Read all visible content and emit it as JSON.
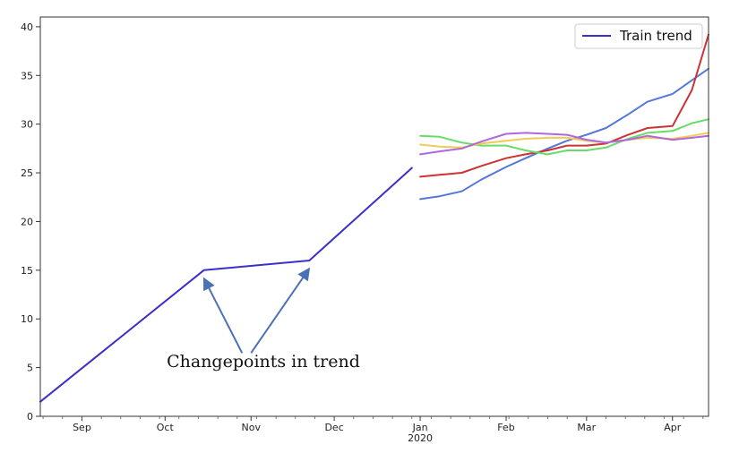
{
  "chart_data": {
    "type": "line",
    "title": "",
    "xlabel": "",
    "ylabel": "",
    "x_axis": {
      "type": "date",
      "range": [
        "2019-08-17",
        "2020-04-14"
      ],
      "ticks": [
        {
          "date": "2019-09-01",
          "label": "Sep"
        },
        {
          "date": "2019-10-01",
          "label": "Oct"
        },
        {
          "date": "2019-11-01",
          "label": "Nov"
        },
        {
          "date": "2019-12-01",
          "label": "Dec"
        },
        {
          "date": "2020-01-01",
          "label": "Jan",
          "sublabel": "2020"
        },
        {
          "date": "2020-02-01",
          "label": "Feb"
        },
        {
          "date": "2020-03-01",
          "label": "Mar"
        },
        {
          "date": "2020-04-01",
          "label": "Apr"
        }
      ]
    },
    "y_axis": {
      "range": [
        0,
        41
      ],
      "ticks": [
        0,
        5,
        10,
        15,
        20,
        25,
        30,
        35,
        40
      ]
    },
    "grid": false,
    "legend": {
      "placement": "top-right",
      "entries": [
        "Train trend"
      ]
    },
    "series": [
      {
        "name": "Train trend",
        "color": "#3a30c8",
        "in_legend": true,
        "points": [
          [
            "2019-08-17",
            1.5
          ],
          [
            "2019-10-15",
            15.0
          ],
          [
            "2019-11-22",
            16.0
          ],
          [
            "2019-12-29",
            25.5
          ]
        ]
      },
      {
        "color": "#5577d8",
        "in_legend": false,
        "points": [
          [
            "2020-01-01",
            22.3
          ],
          [
            "2020-01-08",
            22.6
          ],
          [
            "2020-01-16",
            23.1
          ],
          [
            "2020-01-23",
            24.3
          ],
          [
            "2020-02-01",
            25.6
          ],
          [
            "2020-02-08",
            26.5
          ],
          [
            "2020-02-16",
            27.5
          ],
          [
            "2020-02-23",
            28.3
          ],
          [
            "2020-03-01",
            28.9
          ],
          [
            "2020-03-08",
            29.6
          ],
          [
            "2020-03-16",
            31.0
          ],
          [
            "2020-03-23",
            32.3
          ],
          [
            "2020-04-01",
            33.1
          ],
          [
            "2020-04-08",
            34.5
          ],
          [
            "2020-04-14",
            35.7
          ]
        ]
      },
      {
        "color": "#cc3333",
        "in_legend": false,
        "points": [
          [
            "2020-01-01",
            24.6
          ],
          [
            "2020-01-08",
            24.8
          ],
          [
            "2020-01-16",
            25.0
          ],
          [
            "2020-01-23",
            25.7
          ],
          [
            "2020-02-01",
            26.5
          ],
          [
            "2020-02-08",
            26.9
          ],
          [
            "2020-02-16",
            27.3
          ],
          [
            "2020-02-23",
            27.8
          ],
          [
            "2020-03-01",
            27.8
          ],
          [
            "2020-03-08",
            28.0
          ],
          [
            "2020-03-16",
            28.9
          ],
          [
            "2020-03-23",
            29.6
          ],
          [
            "2020-04-01",
            29.8
          ],
          [
            "2020-04-08",
            33.5
          ],
          [
            "2020-04-14",
            39.2
          ]
        ]
      },
      {
        "color": "#66dd66",
        "in_legend": false,
        "points": [
          [
            "2020-01-01",
            28.8
          ],
          [
            "2020-01-08",
            28.7
          ],
          [
            "2020-01-16",
            28.1
          ],
          [
            "2020-01-23",
            27.8
          ],
          [
            "2020-02-01",
            27.8
          ],
          [
            "2020-02-08",
            27.3
          ],
          [
            "2020-02-16",
            26.9
          ],
          [
            "2020-02-23",
            27.3
          ],
          [
            "2020-03-01",
            27.3
          ],
          [
            "2020-03-08",
            27.6
          ],
          [
            "2020-03-16",
            28.5
          ],
          [
            "2020-03-23",
            29.1
          ],
          [
            "2020-04-01",
            29.3
          ],
          [
            "2020-04-08",
            30.1
          ],
          [
            "2020-04-14",
            30.5
          ]
        ]
      },
      {
        "color": "#f0cc55",
        "in_legend": false,
        "points": [
          [
            "2020-01-01",
            27.9
          ],
          [
            "2020-01-08",
            27.7
          ],
          [
            "2020-01-16",
            27.6
          ],
          [
            "2020-01-23",
            28.0
          ],
          [
            "2020-02-01",
            28.3
          ],
          [
            "2020-02-08",
            28.5
          ],
          [
            "2020-02-16",
            28.6
          ],
          [
            "2020-02-23",
            28.6
          ],
          [
            "2020-03-01",
            28.3
          ],
          [
            "2020-03-08",
            28.1
          ],
          [
            "2020-03-16",
            28.4
          ],
          [
            "2020-03-23",
            28.6
          ],
          [
            "2020-04-01",
            28.5
          ],
          [
            "2020-04-08",
            28.8
          ],
          [
            "2020-04-14",
            29.1
          ]
        ]
      },
      {
        "color": "#b266dd",
        "in_legend": false,
        "points": [
          [
            "2020-01-01",
            26.9
          ],
          [
            "2020-01-08",
            27.2
          ],
          [
            "2020-01-16",
            27.5
          ],
          [
            "2020-01-23",
            28.2
          ],
          [
            "2020-02-01",
            29.0
          ],
          [
            "2020-02-08",
            29.1
          ],
          [
            "2020-02-16",
            29.0
          ],
          [
            "2020-02-23",
            28.9
          ],
          [
            "2020-03-01",
            28.4
          ],
          [
            "2020-03-08",
            28.1
          ],
          [
            "2020-03-16",
            28.4
          ],
          [
            "2020-03-23",
            28.8
          ],
          [
            "2020-04-01",
            28.4
          ],
          [
            "2020-04-08",
            28.6
          ],
          [
            "2020-04-14",
            28.8
          ]
        ]
      }
    ],
    "annotation": {
      "text": "Changepoints in trend",
      "color": "#4a72b4",
      "targets": [
        [
          "2019-10-15",
          15.0
        ],
        [
          "2019-11-22",
          16.0
        ]
      ],
      "origin": [
        "2019-11-01",
        6.5
      ]
    }
  }
}
